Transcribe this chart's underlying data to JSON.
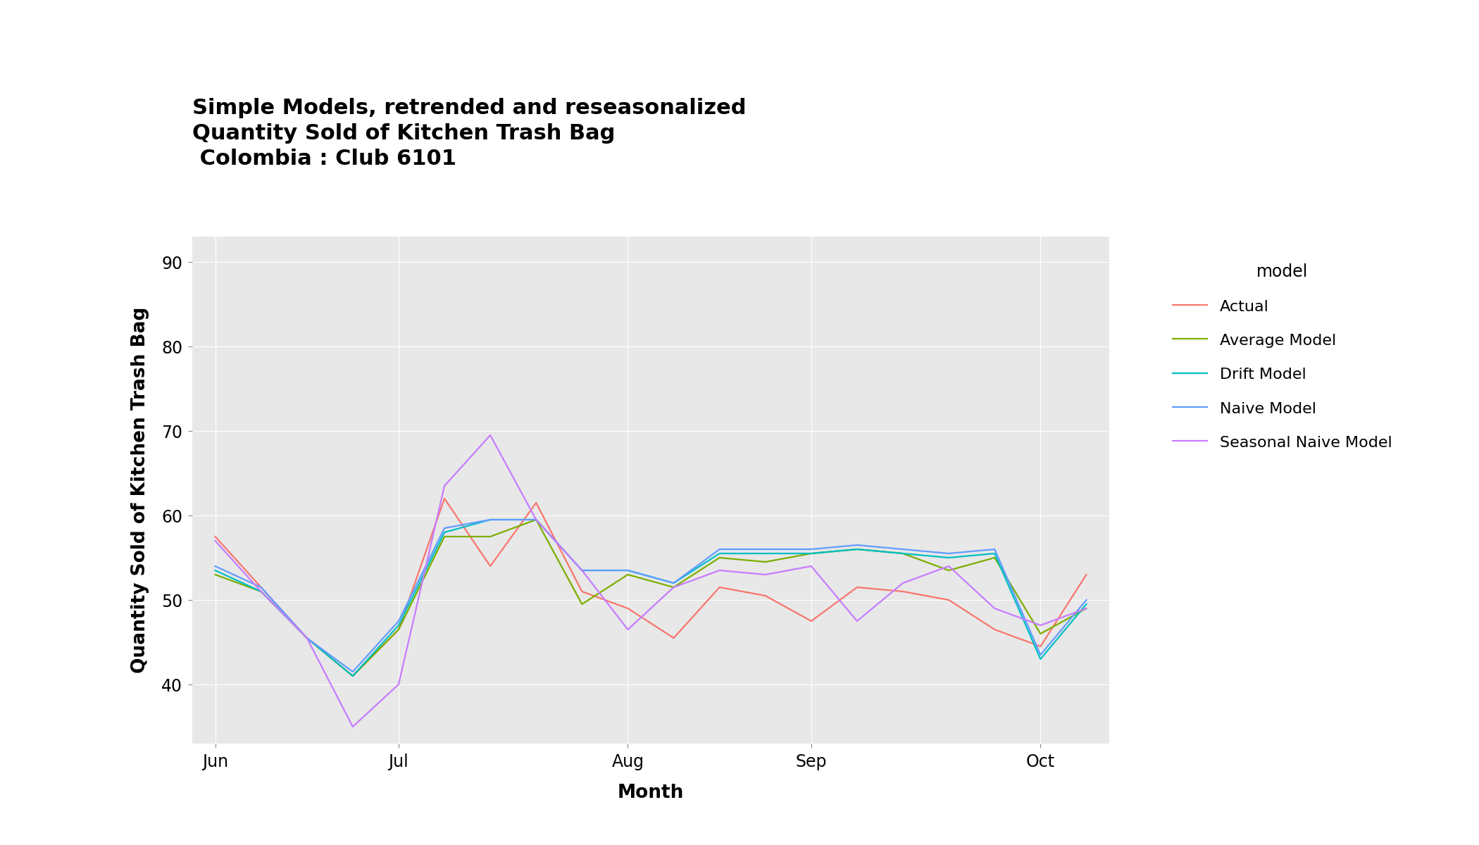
{
  "title_line1": "Simple Models, retrended and reseasonalized",
  "title_line2": "Quantity Sold of Kitchen Trash Bag",
  "title_line3": " Colombia : Club 6101",
  "xlabel": "Month",
  "ylabel": "Quantity Sold of Kitchen Trash Bag",
  "fig_facecolor": "#ffffff",
  "plot_bg_color": "#e8e8e8",
  "grid_color": "#ffffff",
  "ylim": [
    33,
    93
  ],
  "yticks": [
    40,
    50,
    60,
    70,
    80,
    90
  ],
  "series": {
    "Actual": {
      "color": "#F8766D",
      "x": [
        0,
        1,
        2,
        3,
        4,
        5,
        6,
        7,
        8,
        9,
        10,
        11,
        12,
        13,
        14,
        15,
        16,
        17,
        18,
        19
      ],
      "y": [
        57.5,
        51.5,
        45.5,
        41.0,
        46.5,
        62.0,
        54.0,
        61.5,
        51.0,
        49.0,
        45.5,
        51.5,
        50.5,
        47.5,
        51.5,
        51.0,
        50.0,
        46.5,
        44.5,
        53.0
      ]
    },
    "Average Model": {
      "color": "#7CAE00",
      "x": [
        0,
        1,
        2,
        3,
        4,
        5,
        6,
        7,
        8,
        9,
        10,
        11,
        12,
        13,
        14,
        15,
        16,
        17,
        18,
        19
      ],
      "y": [
        53.0,
        51.0,
        45.5,
        41.0,
        46.5,
        57.5,
        57.5,
        59.5,
        49.5,
        53.0,
        51.5,
        55.0,
        54.5,
        55.5,
        56.0,
        55.5,
        53.5,
        55.0,
        46.0,
        49.0
      ]
    },
    "Drift Model": {
      "color": "#00BFC4",
      "x": [
        0,
        1,
        2,
        3,
        4,
        5,
        6,
        7,
        8,
        9,
        10,
        11,
        12,
        13,
        14,
        15,
        16,
        17,
        18,
        19
      ],
      "y": [
        53.5,
        51.0,
        45.5,
        41.0,
        47.0,
        58.0,
        59.5,
        59.5,
        53.5,
        53.5,
        52.0,
        55.5,
        55.5,
        55.5,
        56.0,
        55.5,
        55.0,
        55.5,
        43.0,
        49.5
      ]
    },
    "Naive Model": {
      "color": "#619CFF",
      "x": [
        0,
        1,
        2,
        3,
        4,
        5,
        6,
        7,
        8,
        9,
        10,
        11,
        12,
        13,
        14,
        15,
        16,
        17,
        18,
        19
      ],
      "y": [
        54.0,
        51.5,
        45.5,
        41.5,
        47.5,
        58.5,
        59.5,
        59.5,
        53.5,
        53.5,
        52.0,
        56.0,
        56.0,
        56.0,
        56.5,
        56.0,
        55.5,
        56.0,
        43.5,
        50.0
      ]
    },
    "Seasonal Naive Model": {
      "color": "#C77CFF",
      "x": [
        0,
        1,
        2,
        3,
        4,
        5,
        6,
        7,
        8,
        9,
        10,
        11,
        12,
        13,
        14,
        15,
        16,
        17,
        18,
        19
      ],
      "y": [
        57.0,
        51.0,
        45.5,
        35.0,
        40.0,
        63.5,
        69.5,
        59.5,
        53.5,
        46.5,
        51.5,
        53.5,
        53.0,
        54.0,
        47.5,
        52.0,
        54.0,
        49.0,
        47.0,
        49.0
      ]
    }
  },
  "x_tick_positions": [
    0,
    4,
    9,
    13,
    18
  ],
  "x_tick_labels": [
    "Jun",
    "Jul",
    "Aug",
    "Sep",
    "Oct"
  ],
  "legend_title": "model",
  "series_order": [
    "Actual",
    "Average Model",
    "Drift Model",
    "Naive Model",
    "Seasonal Naive Model"
  ],
  "title_fontsize": 22,
  "axis_label_fontsize": 19,
  "tick_fontsize": 17,
  "legend_title_fontsize": 17,
  "legend_fontsize": 16,
  "line_width": 1.6
}
